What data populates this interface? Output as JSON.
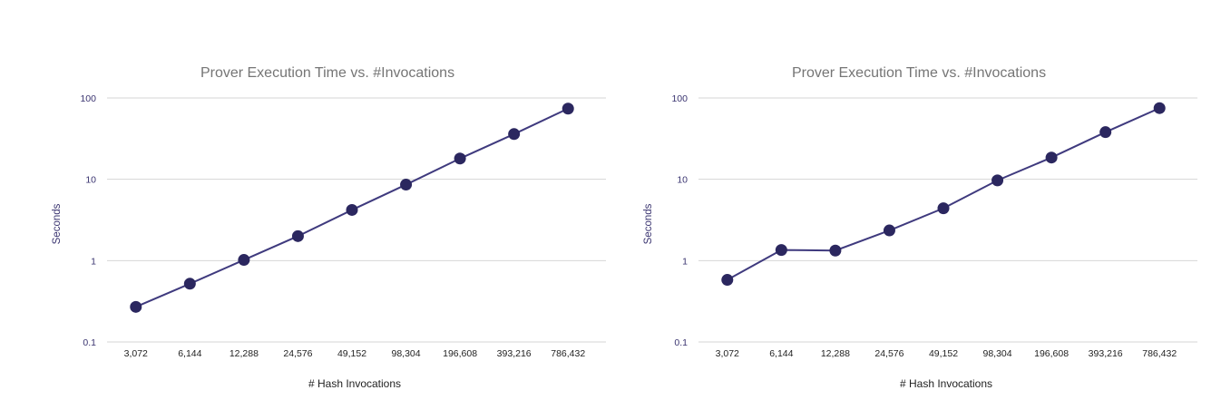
{
  "chart_data": [
    {
      "type": "line",
      "title": "Prover Execution Time vs. #Invocations",
      "xlabel": "# Hash Invocations",
      "ylabel": "Seconds",
      "yscale": "log",
      "ylim": [
        0.1,
        100
      ],
      "yticks": [
        "0.1",
        "1",
        "10",
        "100"
      ],
      "categories": [
        "3,072",
        "6,144",
        "12,288",
        "24,576",
        "49,152",
        "98,304",
        "196,608",
        "393,216",
        "786,432"
      ],
      "series": [
        {
          "values": [
            0.27,
            0.52,
            1.02,
            2.0,
            4.2,
            8.6,
            18,
            36,
            74
          ]
        }
      ],
      "grid": true,
      "legend": "none",
      "colors": {
        "line": "#3f3a7e",
        "marker": "#2b275f"
      }
    },
    {
      "type": "line",
      "title": "Prover Execution Time vs. #Invocations",
      "xlabel": "# Hash Invocations",
      "ylabel": "Seconds",
      "yscale": "log",
      "ylim": [
        0.1,
        100
      ],
      "yticks": [
        "0.1",
        "1",
        "10",
        "100"
      ],
      "categories": [
        "3,072",
        "6,144",
        "12,288",
        "24,576",
        "49,152",
        "98,304",
        "196,608",
        "393,216",
        "786,432"
      ],
      "series": [
        {
          "values": [
            0.58,
            1.35,
            1.33,
            2.35,
            4.4,
            9.7,
            18.5,
            38,
            75
          ]
        }
      ],
      "grid": true,
      "legend": "none",
      "colors": {
        "line": "#3f3a7e",
        "marker": "#2b275f"
      }
    }
  ]
}
